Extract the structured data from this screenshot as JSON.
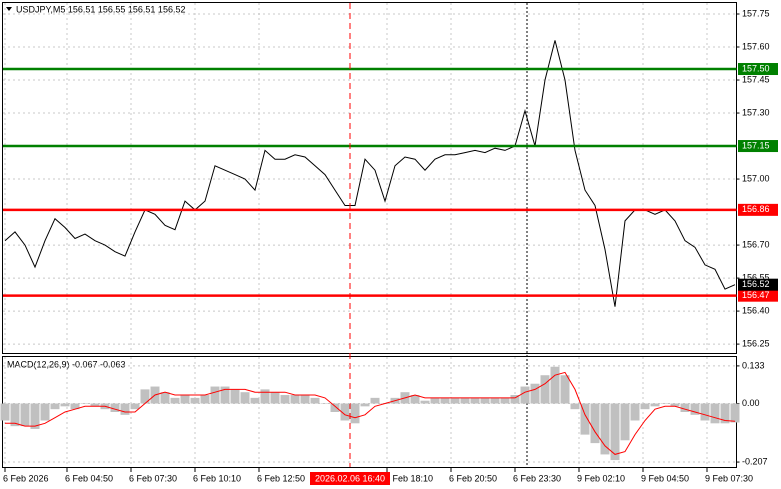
{
  "chart_data": [
    {
      "type": "line",
      "title": "USDJPY,M5  156.51 156.55 156.51 156.52",
      "color": "#000000",
      "grid": true,
      "x": [
        0,
        5,
        10,
        15,
        20,
        25,
        30,
        35,
        40,
        45,
        50,
        55,
        60,
        65,
        70,
        75,
        80,
        85,
        90,
        95,
        100,
        105,
        110,
        115,
        120,
        125,
        130,
        135,
        140,
        145,
        150,
        155,
        160,
        165,
        170,
        175,
        180,
        185,
        190,
        195,
        200,
        205,
        210,
        215,
        220,
        225,
        230,
        235,
        240,
        245,
        250,
        255,
        260,
        265,
        270,
        275,
        280,
        285,
        290,
        295,
        300,
        305,
        310,
        315,
        320,
        325,
        330,
        335,
        340,
        345,
        350,
        355,
        360,
        365
      ],
      "values": [
        156.72,
        156.76,
        156.7,
        156.6,
        156.72,
        156.82,
        156.78,
        156.73,
        156.75,
        156.72,
        156.7,
        156.67,
        156.65,
        156.76,
        156.86,
        156.84,
        156.79,
        156.77,
        156.9,
        156.86,
        156.9,
        157.06,
        157.04,
        157.02,
        157.0,
        156.95,
        157.13,
        157.09,
        157.09,
        157.11,
        157.1,
        157.06,
        157.02,
        156.95,
        156.88,
        156.88,
        157.09,
        157.04,
        156.9,
        157.06,
        157.1,
        157.09,
        157.04,
        157.09,
        157.11,
        157.11,
        157.12,
        157.13,
        157.12,
        157.14,
        157.13,
        157.15,
        157.31,
        157.15,
        157.45,
        157.63,
        157.45,
        157.13,
        156.95,
        156.88,
        156.68,
        156.42,
        156.81,
        156.86,
        156.86,
        156.84,
        156.86,
        156.81,
        156.72,
        156.69,
        156.61,
        156.59,
        156.5,
        156.52
      ],
      "xlim": [
        0,
        366
      ],
      "ylim": [
        156.205,
        157.8
      ],
      "yticks": [
        157.75,
        {
          "value": 157.6,
          "label": "157.60"
        },
        157.45,
        {
          "value": 157.3,
          "label": "157.30"
        },
        {
          "value": 157,
          "label": "157.00"
        },
        {
          "value": 156.7,
          "label": "156.70"
        },
        156.55,
        {
          "value": 156.4,
          "label": "156.40"
        },
        156.25
      ],
      "xticks": [
        {
          "value": 0,
          "label": "6 Feb 2026"
        },
        {
          "value": 31,
          "label": "6 Feb 04:50"
        },
        {
          "value": 63,
          "label": "6 Feb 07:30"
        },
        {
          "value": 95,
          "label": "6 Feb 10:10"
        },
        {
          "value": 127,
          "label": "6 Feb 12:50"
        },
        {
          "value": 191,
          "label": "6 Feb 18:10"
        },
        {
          "value": 223,
          "label": "6 Feb 20:50"
        },
        {
          "value": 255,
          "label": "6 Feb 23:30"
        },
        {
          "value": 287,
          "label": "9 Feb 02:10"
        },
        {
          "value": 319,
          "label": "9 Feb 04:50"
        },
        {
          "value": 351,
          "label": "9 Feb 07:30"
        }
      ],
      "crosshair": {
        "value": 172.5,
        "label": "2026.02.06 16:40"
      },
      "levels": [
        {
          "value": 157.5,
          "label": "157.50",
          "color": "#008000"
        },
        {
          "value": 157.15,
          "label": "157.15",
          "color": "#008000"
        },
        {
          "value": 156.86,
          "label": "156.86",
          "color": "#ff0000"
        },
        {
          "value": 156.47,
          "label": "156.47",
          "color": "#ff0000"
        }
      ],
      "last_price": {
        "value": 156.52,
        "label": "156.52"
      }
    },
    {
      "type": "macd",
      "title": "MACD(12,26,9) -0.067 -0.063",
      "grid": true,
      "ylim": [
        -0.228,
        0.168
      ],
      "yticks": [
        0.133,
        {
          "value": 0,
          "label": "0.00"
        },
        -0.207
      ],
      "series": [
        {
          "kind": "bar",
          "color": "#c0c0c0",
          "values": [
            -0.06,
            -0.08,
            -0.08,
            -0.09,
            -0.06,
            -0.02,
            -0.01,
            -0.02,
            0,
            -0.01,
            -0.02,
            -0.03,
            -0.04,
            -0.02,
            0.05,
            0.06,
            0.04,
            0.02,
            0.03,
            0.02,
            0.03,
            0.06,
            0.06,
            0.05,
            0.04,
            0.02,
            0.05,
            0.04,
            0.03,
            0.03,
            0.03,
            0.02,
            0,
            -0.03,
            -0.06,
            -0.07,
            -0.01,
            0.02,
            0,
            0.02,
            0.04,
            0.03,
            0.01,
            0.02,
            0.02,
            0.02,
            0.02,
            0.02,
            0.02,
            0.02,
            0.02,
            0.03,
            0.06,
            0.07,
            0.1,
            0.13,
            0.1,
            -0.02,
            -0.11,
            -0.14,
            -0.18,
            -0.2,
            -0.13,
            -0.06,
            -0.02,
            -0.01,
            0,
            -0.01,
            -0.03,
            -0.04,
            -0.06,
            -0.07,
            -0.07,
            -0.067
          ]
        },
        {
          "kind": "line",
          "color": "#ff0000",
          "values": [
            -0.07,
            -0.07,
            -0.08,
            -0.08,
            -0.07,
            -0.05,
            -0.03,
            -0.02,
            -0.01,
            -0.01,
            -0.01,
            -0.02,
            -0.03,
            -0.03,
            0,
            0.03,
            0.04,
            0.03,
            0.03,
            0.03,
            0.03,
            0.04,
            0.05,
            0.05,
            0.05,
            0.04,
            0.04,
            0.04,
            0.04,
            0.03,
            0.03,
            0.03,
            0.02,
            -0.01,
            -0.04,
            -0.05,
            -0.04,
            -0.01,
            0,
            0.01,
            0.02,
            0.03,
            0.02,
            0.02,
            0.02,
            0.02,
            0.02,
            0.02,
            0.02,
            0.02,
            0.02,
            0.02,
            0.04,
            0.05,
            0.07,
            0.1,
            0.11,
            0.05,
            -0.04,
            -0.1,
            -0.15,
            -0.18,
            -0.17,
            -0.11,
            -0.06,
            -0.02,
            -0.01,
            -0.01,
            -0.02,
            -0.03,
            -0.04,
            -0.05,
            -0.06,
            -0.063
          ]
        }
      ]
    }
  ]
}
